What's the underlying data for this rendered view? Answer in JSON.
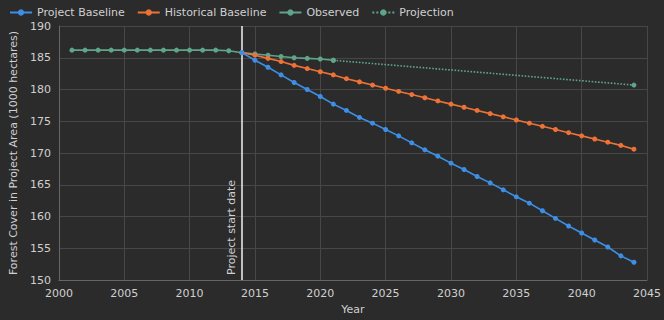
{
  "chart_data": {
    "type": "line",
    "x_label": "Year",
    "y_label": "Forest Cover in Project Area (1000 hectares)",
    "xlim": [
      2000,
      2045
    ],
    "xticks": [
      2000,
      2005,
      2010,
      2015,
      2020,
      2025,
      2030,
      2035,
      2040,
      2045
    ],
    "ylim": [
      150,
      190
    ],
    "yticks": [
      150,
      155,
      160,
      165,
      170,
      175,
      180,
      185,
      190
    ],
    "grid": true,
    "legend": "top-left",
    "annotations": [
      {
        "text": "Project start date",
        "x": 2014
      }
    ],
    "series": [
      {
        "name": "Project Baseline",
        "color": "#3d8fe6",
        "marker": "circle",
        "line_style": "solid",
        "x": [
          2014,
          2015,
          2016,
          2017,
          2018,
          2019,
          2020,
          2021,
          2022,
          2023,
          2024,
          2025,
          2026,
          2027,
          2028,
          2029,
          2030,
          2031,
          2032,
          2033,
          2034,
          2035,
          2036,
          2037,
          2038,
          2039,
          2040,
          2041,
          2042,
          2043,
          2044
        ],
        "values": [
          185.8,
          184.6,
          183.5,
          182.3,
          181.1,
          180.0,
          178.9,
          177.7,
          176.7,
          175.6,
          174.7,
          173.7,
          172.7,
          171.6,
          170.5,
          169.5,
          168.4,
          167.4,
          166.3,
          165.3,
          164.2,
          163.1,
          162.1,
          160.9,
          159.7,
          158.5,
          157.4,
          156.3,
          155.2,
          153.8,
          152.8
        ]
      },
      {
        "name": "Historical Baseline",
        "color": "#ee7236",
        "marker": "circle",
        "line_style": "solid",
        "x": [
          2014,
          2015,
          2016,
          2017,
          2018,
          2019,
          2020,
          2021,
          2022,
          2023,
          2024,
          2025,
          2026,
          2027,
          2028,
          2029,
          2030,
          2031,
          2032,
          2033,
          2034,
          2035,
          2036,
          2037,
          2038,
          2039,
          2040,
          2041,
          2042,
          2043,
          2044
        ],
        "values": [
          185.8,
          185.4,
          184.9,
          184.4,
          183.8,
          183.3,
          182.8,
          182.3,
          181.7,
          181.2,
          180.7,
          180.2,
          179.7,
          179.2,
          178.7,
          178.2,
          177.7,
          177.2,
          176.7,
          176.2,
          175.7,
          175.2,
          174.7,
          174.2,
          173.7,
          173.2,
          172.7,
          172.2,
          171.7,
          171.2,
          170.6
        ]
      },
      {
        "name": "Observed",
        "color": "#5fa58a",
        "marker": "circle",
        "line_style": "solid",
        "x": [
          2001,
          2002,
          2003,
          2004,
          2005,
          2006,
          2007,
          2008,
          2009,
          2010,
          2011,
          2012,
          2013,
          2014,
          2015,
          2016,
          2017,
          2018,
          2019,
          2020,
          2021
        ],
        "values": [
          186.2,
          186.2,
          186.2,
          186.2,
          186.2,
          186.2,
          186.2,
          186.2,
          186.2,
          186.2,
          186.2,
          186.2,
          186.1,
          185.8,
          185.6,
          185.4,
          185.2,
          185.0,
          184.9,
          184.8,
          184.6
        ]
      },
      {
        "name": "Projection",
        "color": "#5fa58a",
        "marker": "circle",
        "line_style": "dotted",
        "x": [
          2021,
          2044
        ],
        "values": [
          184.6,
          180.7
        ]
      }
    ]
  }
}
